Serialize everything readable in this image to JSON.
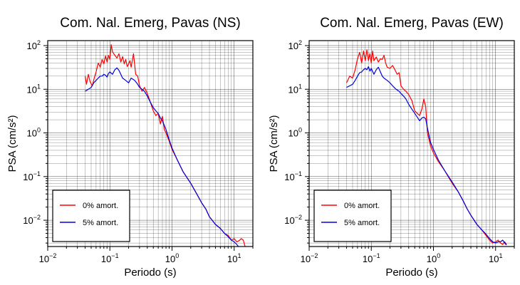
{
  "chart_data": [
    {
      "type": "line",
      "title": "Com. Nal. Emerg, Pavas (NS)",
      "xlabel": "Periodo (s)",
      "ylabel": "PSA (cm/s²)",
      "xscale": "log",
      "yscale": "log",
      "xlim": [
        0.01,
        20
      ],
      "ylim": [
        0.0025,
        130
      ],
      "grid": true,
      "legend_position": "bottom-left",
      "x_ticks": [
        {
          "base": "10",
          "exp": "−2"
        },
        {
          "base": "10",
          "exp": "−1"
        },
        {
          "base": "10",
          "exp": "0"
        },
        {
          "base": "10",
          "exp": "1"
        }
      ],
      "y_ticks": [
        {
          "base": "10",
          "exp": "−2"
        },
        {
          "base": "10",
          "exp": "−1"
        },
        {
          "base": "10",
          "exp": "0"
        },
        {
          "base": "10",
          "exp": "1"
        },
        {
          "base": "10",
          "exp": "2"
        }
      ],
      "series": [
        {
          "name": "0% amort.",
          "color": "#ff0000",
          "x": [
            0.04,
            0.042,
            0.045,
            0.048,
            0.052,
            0.056,
            0.06,
            0.065,
            0.07,
            0.075,
            0.08,
            0.085,
            0.09,
            0.095,
            0.1,
            0.105,
            0.11,
            0.12,
            0.13,
            0.14,
            0.15,
            0.16,
            0.17,
            0.18,
            0.19,
            0.2,
            0.21,
            0.22,
            0.24,
            0.26,
            0.28,
            0.3,
            0.33,
            0.36,
            0.4,
            0.45,
            0.5,
            0.55,
            0.6,
            0.65,
            0.7,
            0.75,
            0.8,
            0.9,
            1.0,
            1.2,
            1.5,
            2.0,
            2.5,
            3.0,
            3.5,
            4.0,
            5.0,
            6.0,
            7.0,
            8.0,
            9.0,
            10.0,
            11.0,
            12.0,
            13.0,
            14.0,
            15.0
          ],
          "y": [
            20,
            13,
            22,
            15,
            12,
            18,
            25,
            40,
            32,
            48,
            38,
            58,
            42,
            60,
            48,
            105,
            72,
            60,
            52,
            65,
            42,
            56,
            38,
            48,
            33,
            38,
            45,
            32,
            65,
            22,
            20,
            12,
            9,
            11,
            8,
            5,
            3.2,
            2.5,
            2.8,
            1.6,
            2.4,
            1.2,
            1.0,
            0.65,
            0.42,
            0.25,
            0.13,
            0.07,
            0.04,
            0.025,
            0.018,
            0.012,
            0.008,
            0.0065,
            0.005,
            0.0045,
            0.0035,
            0.0038,
            0.0032,
            0.0034,
            0.0038,
            0.0035,
            0.0025
          ]
        },
        {
          "name": "5% amort.",
          "color": "#0000dd",
          "x": [
            0.04,
            0.045,
            0.05,
            0.055,
            0.06,
            0.065,
            0.07,
            0.075,
            0.08,
            0.085,
            0.09,
            0.095,
            0.1,
            0.11,
            0.12,
            0.13,
            0.14,
            0.15,
            0.16,
            0.18,
            0.2,
            0.22,
            0.25,
            0.28,
            0.3,
            0.33,
            0.36,
            0.4,
            0.45,
            0.5,
            0.55,
            0.6,
            0.65,
            0.7,
            0.75,
            0.8,
            0.9,
            1.0,
            1.2,
            1.5,
            2.0,
            2.5,
            3.0,
            3.5,
            4.0,
            5.0,
            6.0,
            7.0,
            8.0,
            9.0,
            10.0,
            11.0,
            12.0,
            13.0,
            14.0
          ],
          "y": [
            9,
            10,
            11,
            14,
            16,
            18,
            20,
            20,
            22,
            21,
            19,
            23,
            25,
            22,
            28,
            31,
            27,
            22,
            18,
            16,
            14,
            18,
            16,
            13,
            11,
            10,
            9,
            7,
            5,
            3.8,
            3.2,
            2.8,
            2.2,
            1.9,
            1.5,
            1.2,
            0.7,
            0.45,
            0.25,
            0.13,
            0.07,
            0.04,
            0.025,
            0.018,
            0.012,
            0.008,
            0.0065,
            0.005,
            0.0042,
            0.0035,
            0.0032,
            0.0028,
            0.0024,
            0.0022,
            0.002
          ]
        }
      ]
    },
    {
      "type": "line",
      "title": "Com. Nal. Emerg, Pavas (EW)",
      "xlabel": "Periodo (s)",
      "ylabel": "PSA (cm/s²)",
      "xscale": "log",
      "yscale": "log",
      "xlim": [
        0.01,
        20
      ],
      "ylim": [
        0.0025,
        130
      ],
      "grid": true,
      "legend_position": "bottom-left",
      "x_ticks": [
        {
          "base": "10",
          "exp": "−2"
        },
        {
          "base": "10",
          "exp": "−1"
        },
        {
          "base": "10",
          "exp": "0"
        },
        {
          "base": "10",
          "exp": "1"
        }
      ],
      "y_ticks": [
        {
          "base": "10",
          "exp": "−2"
        },
        {
          "base": "10",
          "exp": "−1"
        },
        {
          "base": "10",
          "exp": "0"
        },
        {
          "base": "10",
          "exp": "1"
        },
        {
          "base": "10",
          "exp": "2"
        }
      ],
      "series": [
        {
          "name": "0% amort.",
          "color": "#ff0000",
          "x": [
            0.04,
            0.045,
            0.05,
            0.055,
            0.06,
            0.065,
            0.07,
            0.075,
            0.08,
            0.085,
            0.09,
            0.095,
            0.1,
            0.105,
            0.11,
            0.12,
            0.13,
            0.14,
            0.15,
            0.16,
            0.17,
            0.18,
            0.2,
            0.22,
            0.24,
            0.26,
            0.28,
            0.3,
            0.33,
            0.36,
            0.4,
            0.45,
            0.5,
            0.55,
            0.6,
            0.65,
            0.7,
            0.75,
            0.8,
            0.9,
            1.0,
            1.2,
            1.5,
            2.0,
            2.5,
            3.0,
            3.5,
            4.0,
            5.0,
            6.0,
            7.0,
            8.0,
            9.0,
            10.0,
            11.0,
            12.0,
            13.0,
            14.0,
            15.0
          ],
          "y": [
            14,
            20,
            18,
            28,
            50,
            70,
            40,
            75,
            45,
            80,
            45,
            65,
            40,
            75,
            45,
            55,
            42,
            50,
            48,
            60,
            40,
            32,
            30,
            35,
            28,
            22,
            24,
            12,
            10,
            9,
            7.5,
            5.5,
            3.2,
            2.8,
            2.5,
            3.5,
            6.0,
            4.0,
            1.0,
            0.5,
            0.35,
            0.22,
            0.14,
            0.07,
            0.045,
            0.028,
            0.018,
            0.013,
            0.008,
            0.006,
            0.0045,
            0.0035,
            0.003,
            0.0032,
            0.0035,
            0.003,
            0.0028,
            0.0032,
            0.0028
          ]
        },
        {
          "name": "5% amort.",
          "color": "#0000dd",
          "x": [
            0.04,
            0.045,
            0.05,
            0.055,
            0.06,
            0.065,
            0.07,
            0.075,
            0.08,
            0.085,
            0.09,
            0.095,
            0.1,
            0.11,
            0.12,
            0.13,
            0.14,
            0.15,
            0.16,
            0.18,
            0.2,
            0.22,
            0.25,
            0.28,
            0.3,
            0.33,
            0.36,
            0.4,
            0.45,
            0.5,
            0.55,
            0.6,
            0.65,
            0.7,
            0.75,
            0.8,
            0.9,
            1.0,
            1.2,
            1.5,
            2.0,
            2.5,
            3.0,
            3.5,
            4.0,
            5.0,
            6.0,
            7.0,
            8.0,
            9.0,
            10.0,
            11.0,
            12.0,
            13.0,
            14.0,
            15.0
          ],
          "y": [
            11,
            12,
            13,
            16,
            20,
            24,
            25,
            28,
            30,
            28,
            33,
            26,
            30,
            22,
            28,
            32,
            25,
            20,
            18,
            16,
            14,
            12,
            10,
            9,
            8,
            7,
            6,
            4.5,
            3.5,
            2.8,
            2.3,
            1.9,
            2.2,
            2.3,
            2.1,
            1.3,
            0.6,
            0.42,
            0.24,
            0.14,
            0.075,
            0.045,
            0.028,
            0.018,
            0.013,
            0.008,
            0.006,
            0.0048,
            0.0038,
            0.0032,
            0.003,
            0.0032,
            0.0032,
            0.0035,
            0.003,
            0.0027
          ]
        }
      ]
    }
  ]
}
